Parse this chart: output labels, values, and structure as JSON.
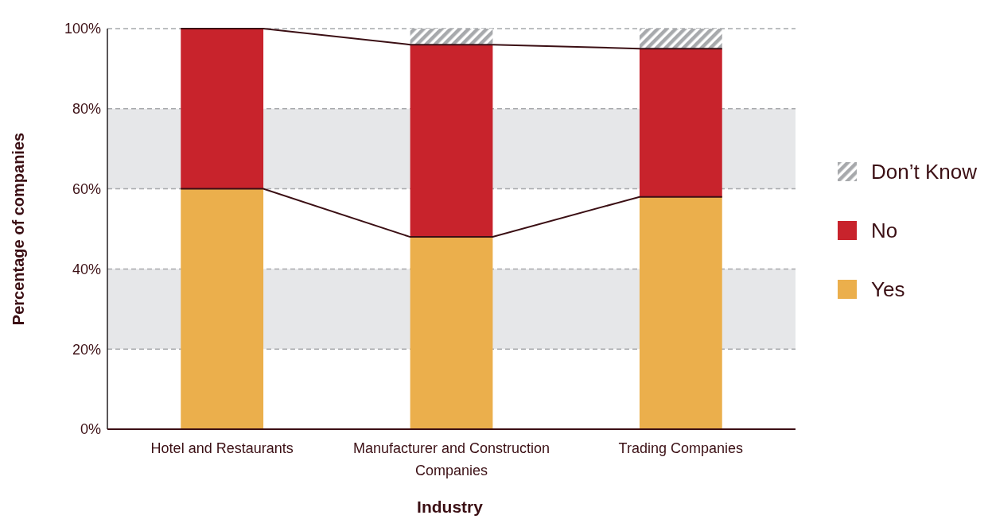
{
  "chart_data": {
    "type": "bar",
    "stacked": true,
    "xlabel": "Industry",
    "ylabel": "Percentage of companies",
    "categories": [
      "Hotel and Restaurants",
      "Manufacturer and Construction Companies",
      "Trading Companies"
    ],
    "series": [
      {
        "name": "Yes",
        "color": "#ebaf4c",
        "values": [
          60,
          48,
          58
        ]
      },
      {
        "name": "No",
        "color": "#c8232c",
        "values": [
          40,
          48,
          37
        ]
      },
      {
        "name": "Don’t Know",
        "color": "#a7a9ac",
        "values": [
          0,
          4,
          5
        ]
      }
    ],
    "ylim": [
      0,
      100
    ],
    "yticks": [
      {
        "value": 0,
        "label": "0%"
      },
      {
        "value": 20,
        "label": "20%"
      },
      {
        "value": 40,
        "label": "40%"
      },
      {
        "value": 60,
        "label": "60%"
      },
      {
        "value": 80,
        "label": "80%"
      },
      {
        "value": 100,
        "label": "100%"
      }
    ],
    "bands": [
      {
        "axis": "y",
        "from": 20,
        "to": 40,
        "color": "#e6e7e9"
      },
      {
        "axis": "y",
        "from": 60,
        "to": 80,
        "color": "#e6e7e9"
      }
    ],
    "grid": "y",
    "legend": "right"
  }
}
